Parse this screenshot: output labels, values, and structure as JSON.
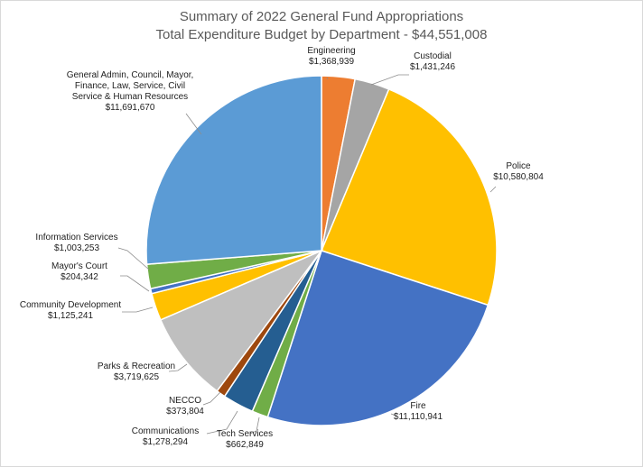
{
  "chart_data": {
    "type": "pie",
    "title": "Summary of 2022 General Fund Appropriations",
    "subtitle": "Total Expenditure Budget by Department - $44,551,008",
    "start_angle_deg": 0,
    "direction": "clockwise",
    "legend": "none",
    "slices": [
      {
        "key": "engineering",
        "name": "Engineering",
        "lines": [
          "Engineering"
        ],
        "value_label": "$1,368,939",
        "value": 1368939,
        "color": "#ED7D31"
      },
      {
        "key": "custodial",
        "name": "Custodial",
        "lines": [
          "Custodial"
        ],
        "value_label": "$1,431,246",
        "value": 1431246,
        "color": "#A5A5A5"
      },
      {
        "key": "police",
        "name": "Police",
        "lines": [
          "Police"
        ],
        "value_label": "$10,580,804",
        "value": 10580804,
        "color": "#FFC000"
      },
      {
        "key": "fire",
        "name": "Fire",
        "lines": [
          "Fire"
        ],
        "value_label": "$11,110,941",
        "value": 11110941,
        "color": "#4472C4"
      },
      {
        "key": "tech-services",
        "name": "Tech Services",
        "lines": [
          "Tech Services"
        ],
        "value_label": "$662,849",
        "value": 662849,
        "color": "#70AD47"
      },
      {
        "key": "communications",
        "name": "Communications",
        "lines": [
          "Communications"
        ],
        "value_label": "$1,278,294",
        "value": 1278294,
        "color": "#255E91"
      },
      {
        "key": "necco",
        "name": "NECCO",
        "lines": [
          "NECCO"
        ],
        "value_label": "$373,804",
        "value": 373804,
        "color": "#9E480E"
      },
      {
        "key": "parks-recreation",
        "name": "Parks & Recreation",
        "lines": [
          "Parks & Recreation"
        ],
        "value_label": "$3,719,625",
        "value": 3719625,
        "color": "#BFBFBF"
      },
      {
        "key": "community-development",
        "name": "Community Development",
        "lines": [
          "Community Development"
        ],
        "value_label": "$1,125,241",
        "value": 1125241,
        "color": "#FFC000"
      },
      {
        "key": "mayors-court",
        "name": "Mayor's Court",
        "lines": [
          "Mayor's Court"
        ],
        "value_label": "$204,342",
        "value": 204342,
        "color": "#4472C4"
      },
      {
        "key": "information-services",
        "name": "Information Services",
        "lines": [
          "Information Services"
        ],
        "value_label": "$1,003,253",
        "value": 1003253,
        "color": "#70AD47"
      },
      {
        "key": "general-admin",
        "name": "General Admin, Council, Mayor, Finance, Law, Service, Civil Service & Human Resources",
        "lines": [
          "General Admin, Council, Mayor,",
          "Finance, Law, Service, Civil",
          "Service & Human Resources"
        ],
        "value_label": "$11,691,670",
        "value": 11691670,
        "color": "#5B9BD5"
      }
    ]
  }
}
